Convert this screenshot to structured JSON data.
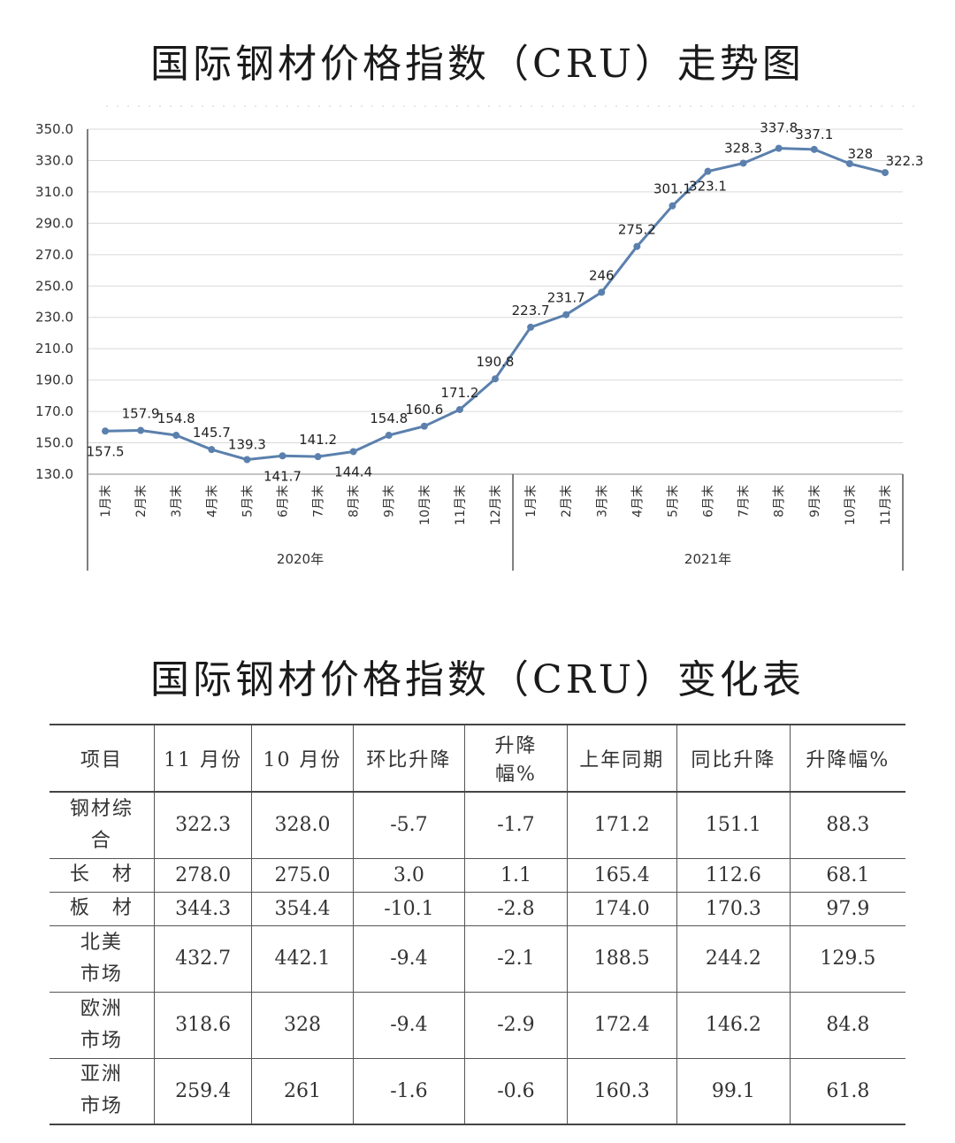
{
  "chart_title": "国际钢材价格指数（CRU）走势图",
  "table_title": "国际钢材价格指数（CRU）变化表",
  "chart_data": {
    "type": "line",
    "title": "国际钢材价格指数（CRU）走势图",
    "categories": [
      "1月末",
      "2月末",
      "3月末",
      "4月末",
      "5月末",
      "6月末",
      "7月末",
      "8月末",
      "9月末",
      "10月末",
      "11月末",
      "12月末",
      "1月末",
      "2月末",
      "3月末",
      "4月末",
      "5月末",
      "6月末",
      "7月末",
      "8月末",
      "9月末",
      "10月末",
      "11月末"
    ],
    "year_groups": [
      {
        "label": "2020年",
        "count": 12
      },
      {
        "label": "2021年",
        "count": 11
      }
    ],
    "series": [
      {
        "values": [
          157.5,
          157.9,
          154.8,
          145.7,
          139.3,
          141.7,
          141.2,
          144.4,
          154.8,
          160.6,
          171.2,
          190.8,
          223.7,
          231.7,
          246,
          275.2,
          301.1,
          323.1,
          328.3,
          337.8,
          337.1,
          328,
          322.3
        ]
      }
    ],
    "data_labels": [
      "157.5",
      "157.9",
      "154.8",
      "145.7",
      "139.3",
      "141.7",
      "141.2",
      "144.4",
      "154.8",
      "160.6",
      "171.2",
      "190.8",
      "223.7",
      "231.7",
      "246",
      "275.2",
      "301.1",
      "323.1",
      "328.3",
      "337.8",
      "337.1",
      "328",
      "322.3"
    ],
    "ylim": [
      130,
      350
    ],
    "yticks": [
      "130.0",
      "150.0",
      "170.0",
      "190.0",
      "210.0",
      "230.0",
      "250.0",
      "270.0",
      "290.0",
      "310.0",
      "330.0",
      "350.0"
    ],
    "grid": true,
    "line_color": "#5b80ad",
    "xlabel": "",
    "ylabel": ""
  },
  "table": {
    "headers": [
      [
        "项目"
      ],
      [
        "11 月份"
      ],
      [
        "10 月份"
      ],
      [
        "环比升降"
      ],
      [
        "升降",
        "幅%"
      ],
      [
        "上年同期"
      ],
      [
        "同比升降"
      ],
      [
        "升降幅%"
      ]
    ],
    "rows": [
      {
        "name": [
          "钢材综",
          "合"
        ],
        "values": [
          "322.3",
          "328.0",
          "-5.7",
          "-1.7",
          "171.2",
          "151.1",
          "88.3"
        ]
      },
      {
        "name": [
          "长　材"
        ],
        "values": [
          "278.0",
          "275.0",
          "3.0",
          "1.1",
          "165.4",
          "112.6",
          "68.1"
        ]
      },
      {
        "name": [
          "板　材"
        ],
        "values": [
          "344.3",
          "354.4",
          "-10.1",
          "-2.8",
          "174.0",
          "170.3",
          "97.9"
        ]
      },
      {
        "name": [
          "北美",
          "市场"
        ],
        "values": [
          "432.7",
          "442.1",
          "-9.4",
          "-2.1",
          "188.5",
          "244.2",
          "129.5"
        ]
      },
      {
        "name": [
          "欧洲",
          "市场"
        ],
        "values": [
          "318.6",
          "328",
          "-9.4",
          "-2.9",
          "172.4",
          "146.2",
          "84.8"
        ]
      },
      {
        "name": [
          "亚洲",
          "市场"
        ],
        "values": [
          "259.4",
          "261",
          "-1.6",
          "-0.6",
          "160.3",
          "99.1",
          "61.8"
        ]
      }
    ]
  }
}
